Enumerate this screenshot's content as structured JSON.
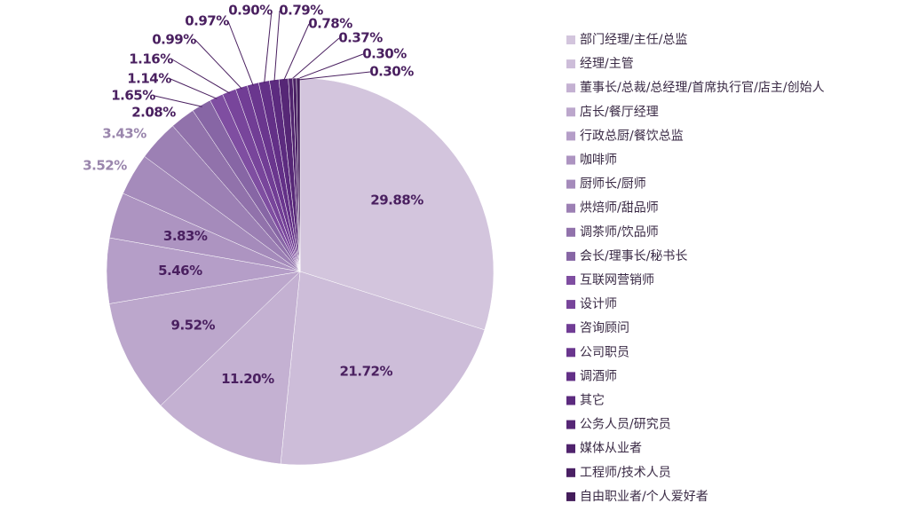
{
  "chart_data": {
    "type": "pie",
    "categories": [
      "部门经理/主任/总监",
      "经理/主管",
      "董事长/总裁/总经理/首席执行官/店主/创始人",
      "店长/餐厅经理",
      "行政总厨/餐饮总监",
      "咖啡师",
      "厨师长/厨师",
      "烘焙师/甜品师",
      "调茶师/饮品师",
      "会长/理事长/秘书长",
      "互联网营销师",
      "设计师",
      "咨询顾问",
      "公司职员",
      "调酒师",
      "其它",
      "公务人员/研究员",
      "媒体从业者",
      "工程师/技术人员",
      "自由职业者/个人爱好者"
    ],
    "values": [
      29.88,
      21.72,
      11.2,
      9.52,
      5.46,
      3.83,
      3.52,
      3.43,
      2.08,
      1.65,
      1.14,
      1.16,
      0.99,
      0.97,
      0.9,
      0.79,
      0.78,
      0.37,
      0.3,
      0.3
    ],
    "value_labels": [
      "29.88%",
      "21.72%",
      "11.20%",
      "9.52%",
      "5.46%",
      "3.83%",
      "3.52%",
      "3.43%",
      "2.08%",
      "1.65%",
      "1.14%",
      "1.16%",
      "0.99%",
      "0.97%",
      "0.90%",
      "0.79%",
      "0.78%",
      "0.37%",
      "0.30%",
      "0.30%"
    ],
    "colors": [
      "#d3c5dd",
      "#cdbdd9",
      "#c4b1d2",
      "#bca7cc",
      "#b59ec8",
      "#ad94c1",
      "#a58bbb",
      "#9c80b4",
      "#9172ab",
      "#8766a5",
      "#7f4ea1",
      "#78459b",
      "#713d95",
      "#6a368e",
      "#633087",
      "#5c2b7f",
      "#562776",
      "#50236d",
      "#4a2064",
      "#441d5b"
    ],
    "label_color": "#4a2060"
  }
}
